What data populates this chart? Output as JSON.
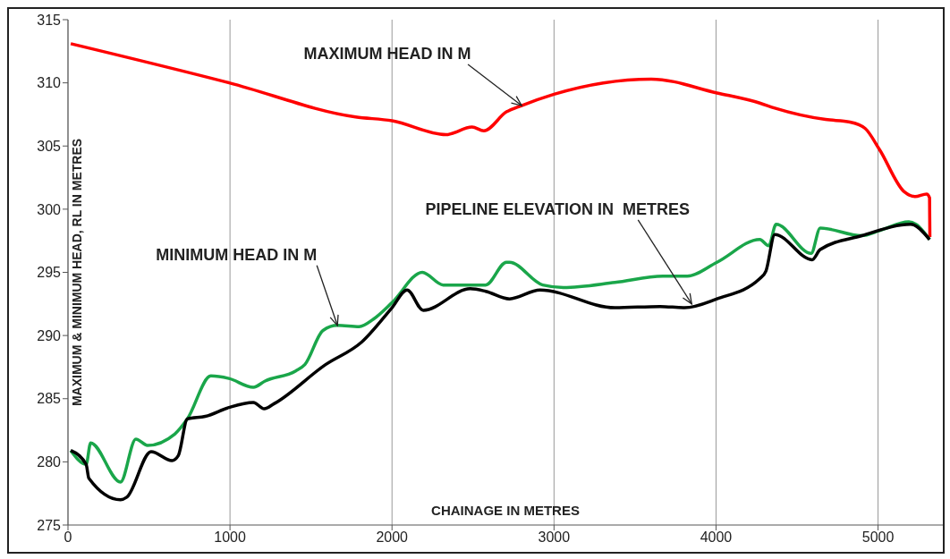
{
  "chart_data": {
    "type": "line",
    "xlabel": "CHAINAGE IN METRES",
    "ylabel": "MAXIMUM & MINIMUM HEAD, RL IN METRES",
    "xlim": [
      0,
      5400
    ],
    "xticks": [
      0,
      1000,
      2000,
      3000,
      4000,
      5000
    ],
    "ylim": [
      275,
      315
    ],
    "yticks": [
      275,
      280,
      285,
      290,
      295,
      300,
      305,
      310,
      315
    ],
    "grid": true,
    "legend": false,
    "marker": "none",
    "line_style": "solid",
    "series": [
      {
        "color": "#ff0000",
        "x": [
          17,
          995,
          1775,
          2000,
          2333,
          2494,
          2567,
          2706,
          2800,
          3000,
          3600,
          4006,
          4270,
          4363,
          4676,
          4827,
          4920,
          5010,
          5160,
          5228,
          5300,
          5318,
          5320
        ],
        "values": [
          313.1,
          310.0,
          307.3,
          307.0,
          305.9,
          306.5,
          306.2,
          307.7,
          308.2,
          309.1,
          310.3,
          309.2,
          308.4,
          308.0,
          307.1,
          306.9,
          306.4,
          304.7,
          301.4,
          301.0,
          301.2,
          300.9,
          297.8
        ]
      },
      {
        "color": "#1aa64a",
        "x": [
          17,
          112,
          140,
          324,
          419,
          491,
          659,
          737,
          882,
          993,
          1144,
          1217,
          1406,
          1462,
          1574,
          1663,
          1797,
          1886,
          2000,
          2187,
          2316,
          2500,
          2578,
          2706,
          2725,
          2930,
          3058,
          3376,
          3672,
          3822,
          4006,
          4270,
          4325,
          4371,
          4587,
          4643,
          4899,
          5010,
          5189,
          5234,
          5318
        ],
        "values": [
          280.9,
          279.8,
          281.5,
          278.4,
          281.8,
          281.3,
          282.2,
          283.4,
          286.8,
          286.6,
          285.9,
          286.4,
          287.2,
          287.7,
          290.4,
          290.8,
          290.7,
          291.3,
          292.6,
          295.0,
          294.0,
          294.0,
          294.0,
          295.8,
          295.8,
          294.0,
          293.8,
          294.2,
          294.7,
          294.7,
          295.8,
          297.6,
          297.1,
          298.8,
          296.5,
          298.5,
          297.9,
          298.3,
          299.0,
          298.8,
          297.6
        ]
      },
      {
        "color": "#000000",
        "x": [
          17,
          112,
          129,
          324,
          363,
          513,
          642,
          681,
          737,
          848,
          993,
          1144,
          1211,
          1272,
          1590,
          1814,
          2000,
          2093,
          2193,
          2483,
          2578,
          2725,
          2913,
          3376,
          3655,
          3806,
          4006,
          4270,
          4308,
          4363,
          4593,
          4643,
          4899,
          5200,
          5318
        ],
        "values": [
          280.9,
          279.8,
          278.7,
          277.0,
          277.2,
          280.8,
          280.1,
          280.5,
          283.4,
          283.6,
          284.3,
          284.7,
          284.2,
          284.6,
          287.7,
          289.5,
          292.2,
          293.6,
          292.0,
          293.7,
          293.5,
          292.9,
          293.6,
          292.2,
          292.3,
          292.2,
          292.9,
          294.5,
          295.1,
          298.0,
          296.0,
          296.8,
          297.9,
          298.8,
          297.6
        ]
      }
    ],
    "annotations": [
      {
        "text": "MAXIMUM HEAD IN M",
        "x": 2800,
        "y": 308.2
      },
      {
        "text": "MINIMUM HEAD IN M",
        "x": 1663,
        "y": 290.8
      },
      {
        "text": "PIPELINE ELEVATION IN  METRES",
        "x": 3850,
        "y": 292.5
      }
    ]
  }
}
